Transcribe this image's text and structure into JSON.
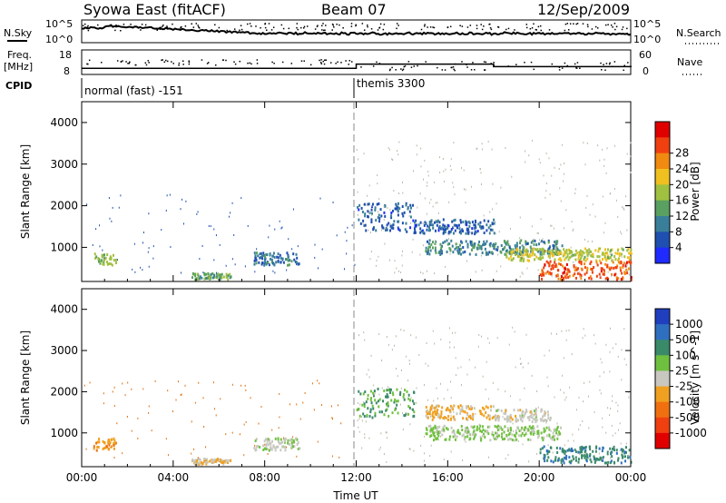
{
  "header": {
    "station": "Syowa East (fitACF)",
    "beam": "Beam 07",
    "date": "12/Sep/2009"
  },
  "top_panels": {
    "nsky_label": "N.Sky",
    "nsky_ticks": [
      "10^5",
      "10^0"
    ],
    "nsearch_label": "N.Search",
    "nsearch_ticks": [
      "10^5",
      "10^0"
    ],
    "freq_label": "Freq.",
    "freq_unit": "[MHz]",
    "freq_ticks": [
      "18",
      "8"
    ],
    "nave_label": "Nave",
    "nave_ticks": [
      "60",
      "0"
    ],
    "cpid_label": "CPID",
    "cpid_segments": [
      {
        "label": "normal (fast) -151",
        "start_ut": "00:00",
        "end_ut": "12:00"
      },
      {
        "label": "themis 3300",
        "start_ut": "12:00",
        "end_ut": "24:00"
      }
    ]
  },
  "colors": {
    "power_scale": [
      "#1f2bff",
      "#1f4fb0",
      "#3a7f9a",
      "#5aa060",
      "#a0c040",
      "#f0c020",
      "#f08a10",
      "#f04010",
      "#e00000"
    ],
    "velocity_scale": [
      "#1f3fbf",
      "#2f6fbf",
      "#3a8a6a",
      "#70c040",
      "#c8c8c0",
      "#f0a020",
      "#f07010",
      "#f04010",
      "#e00000"
    ]
  },
  "chart_data": [
    {
      "type": "heatmap",
      "title": "",
      "xlabel": "",
      "ylabel": "Slant Range [km]",
      "x_ticks": [
        "00:00",
        "04:00",
        "08:00",
        "12:00",
        "16:00",
        "20:00",
        "00:00"
      ],
      "y_ticks": [
        "1000",
        "2000",
        "3000",
        "4000"
      ],
      "ylim": [
        180,
        4500
      ],
      "xlim_hours": [
        0,
        24
      ],
      "colorbar": {
        "label": "Power [dB]",
        "ticks": [
          "4",
          "8",
          "12",
          "16",
          "20",
          "24",
          "28"
        ],
        "range": [
          0,
          30
        ]
      },
      "clusters": [
        {
          "t0": 0.5,
          "t1": 1.5,
          "r0": 600,
          "r1": 900,
          "value": 14
        },
        {
          "t0": 4.8,
          "t1": 6.5,
          "r0": 250,
          "r1": 400,
          "value": 12
        },
        {
          "t0": 7.5,
          "t1": 9.5,
          "r0": 600,
          "r1": 900,
          "value": 8
        },
        {
          "t0": 12.0,
          "t1": 14.5,
          "r0": 1400,
          "r1": 2100,
          "value": 6
        },
        {
          "t0": 14.5,
          "t1": 18.0,
          "r0": 1350,
          "r1": 1700,
          "value": 6
        },
        {
          "t0": 15.0,
          "t1": 21.0,
          "r0": 850,
          "r1": 1200,
          "value": 9
        },
        {
          "t0": 18.5,
          "t1": 24.0,
          "r0": 700,
          "r1": 1000,
          "value": 16
        },
        {
          "t0": 20.0,
          "t1": 24.0,
          "r0": 250,
          "r1": 700,
          "value": 24
        }
      ]
    },
    {
      "type": "heatmap",
      "title": "",
      "xlabel": "Time UT",
      "ylabel": "Slant Range [km]",
      "x_ticks": [
        "00:00",
        "04:00",
        "08:00",
        "12:00",
        "16:00",
        "20:00",
        "00:00"
      ],
      "y_ticks": [
        "1000",
        "2000",
        "3000",
        "4000"
      ],
      "ylim": [
        180,
        4500
      ],
      "xlim_hours": [
        0,
        24
      ],
      "colorbar": {
        "label": "Velocity [m s^-1]",
        "ticks": [
          "1000",
          "500",
          "100",
          "25",
          "-25",
          "-100",
          "-500",
          "-1000"
        ],
        "range": [
          -1200,
          1200
        ]
      },
      "clusters": [
        {
          "t0": 0.5,
          "t1": 1.5,
          "r0": 600,
          "r1": 900,
          "value": -300
        },
        {
          "t0": 4.8,
          "t1": 6.5,
          "r0": 250,
          "r1": 400,
          "value": -150
        },
        {
          "t0": 7.5,
          "t1": 9.5,
          "r0": 600,
          "r1": 900,
          "value": 80
        },
        {
          "t0": 12.0,
          "t1": 14.5,
          "r0": 1400,
          "r1": 2100,
          "value": 400
        },
        {
          "t0": 15.0,
          "t1": 18.0,
          "r0": 1350,
          "r1": 1700,
          "value": -200
        },
        {
          "t0": 18.0,
          "t1": 20.5,
          "r0": 1300,
          "r1": 1600,
          "value": 0
        },
        {
          "t0": 15.0,
          "t1": 21.0,
          "r0": 850,
          "r1": 1200,
          "value": 200
        },
        {
          "t0": 20.0,
          "t1": 24.0,
          "r0": 300,
          "r1": 700,
          "value": 600
        }
      ]
    }
  ]
}
